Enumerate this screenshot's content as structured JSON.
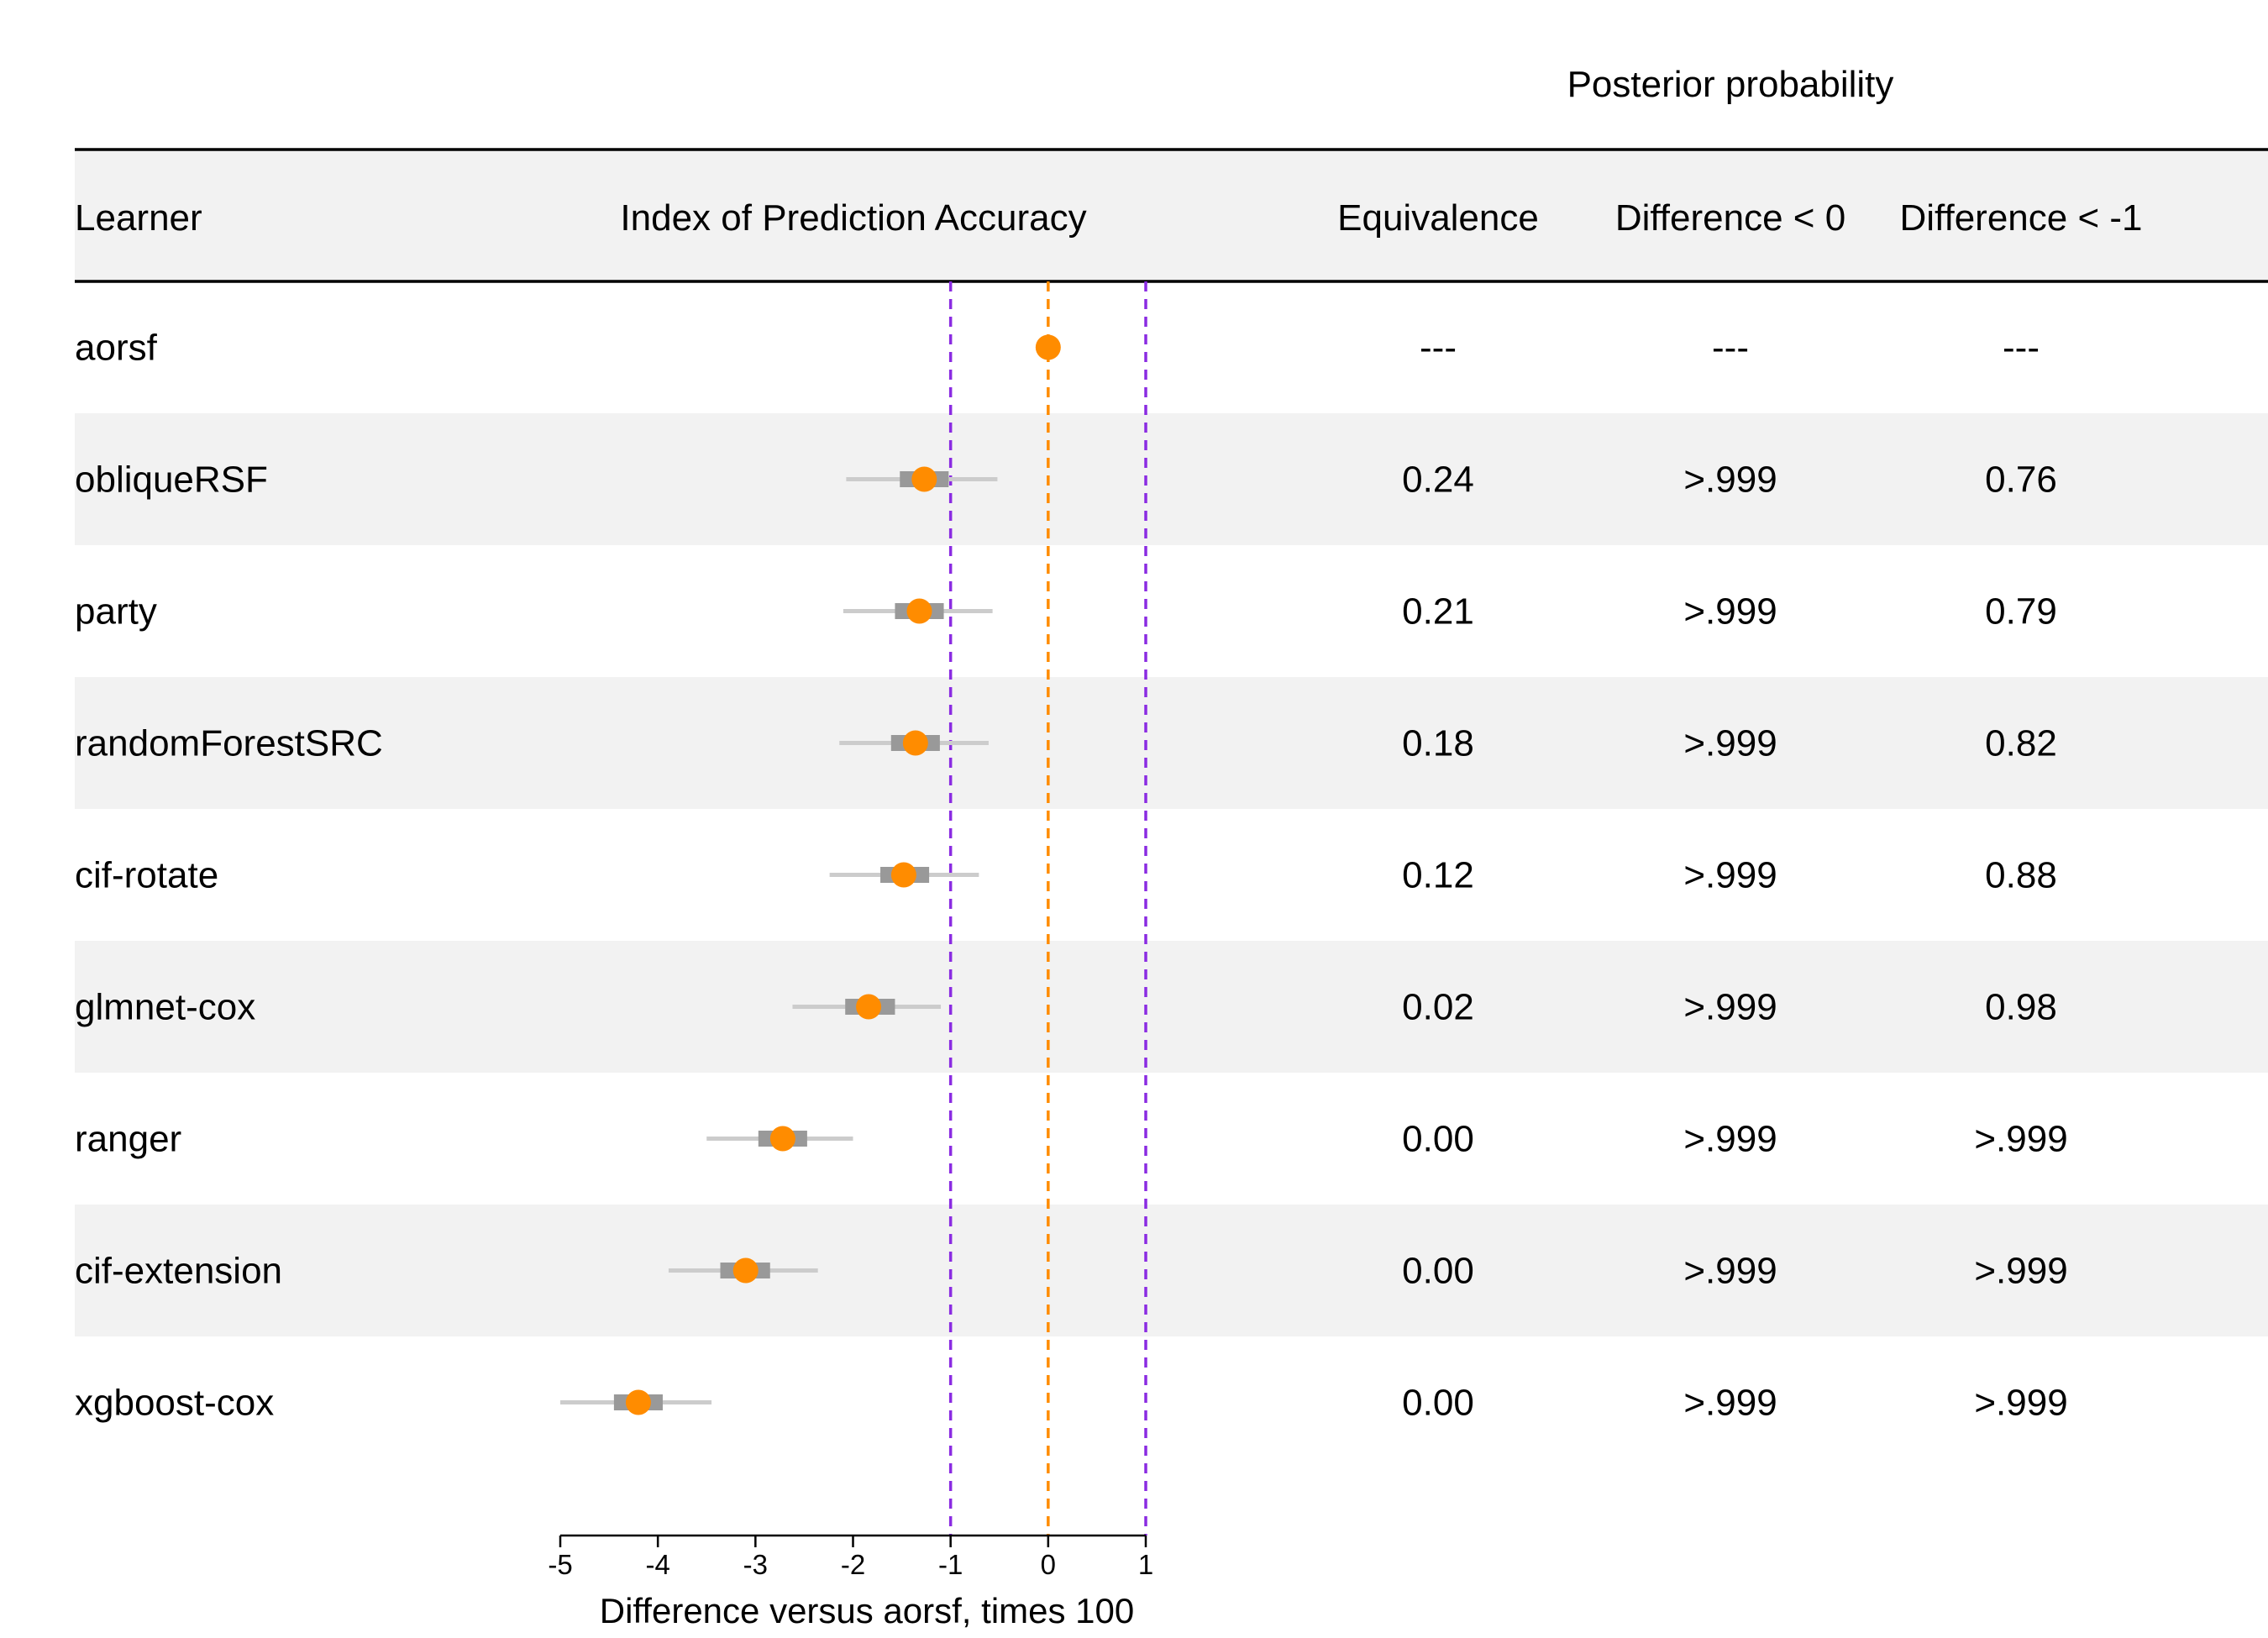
{
  "header": {
    "super_title": "Posterior probability",
    "col_learner": "Learner",
    "col_ipa": "Index of Prediction Accuracy",
    "col_equiv": "Equivalence",
    "col_diff0": "Difference < 0",
    "col_diff1": "Difference < -1"
  },
  "colors": {
    "point": "#FF8C00",
    "ref_line": "#FF8C00",
    "bound_line": "#8A2BE2",
    "interval_outer": "#CCCCCC",
    "interval_inner": "#999999",
    "band": "#F2F2F2",
    "rule": "#000000"
  },
  "chart_data": {
    "type": "forest",
    "xlabel": "Difference versus aorsf, times 100",
    "xlim": [
      -5,
      1
    ],
    "xticks": [
      -5,
      -4,
      -3,
      -2,
      -1,
      0,
      1
    ],
    "xtick_labels": [
      "-5",
      "-4",
      "-3",
      "-2",
      "-1",
      "0",
      "1"
    ],
    "reference_line": 0,
    "equivalence_bounds": [
      -1,
      1
    ],
    "rows": [
      {
        "learner": "aorsf",
        "estimate": 0.0,
        "outer": null,
        "inner": null,
        "equivalence": "---",
        "diff_lt_0": "---",
        "diff_lt_m1": "---"
      },
      {
        "learner": "obliqueRSF",
        "estimate": -1.27,
        "outer": [
          -2.07,
          -0.52
        ],
        "inner": [
          -1.52,
          -1.02
        ],
        "equivalence": "0.24",
        "diff_lt_0": ">.999",
        "diff_lt_m1": "0.76"
      },
      {
        "learner": "party",
        "estimate": -1.32,
        "outer": [
          -2.1,
          -0.57
        ],
        "inner": [
          -1.57,
          -1.07
        ],
        "equivalence": "0.21",
        "diff_lt_0": ">.999",
        "diff_lt_m1": "0.79"
      },
      {
        "learner": "randomForestSRC",
        "estimate": -1.36,
        "outer": [
          -2.14,
          -0.61
        ],
        "inner": [
          -1.61,
          -1.11
        ],
        "equivalence": "0.18",
        "diff_lt_0": ">.999",
        "diff_lt_m1": "0.82"
      },
      {
        "learner": "cif-rotate",
        "estimate": -1.48,
        "outer": [
          -2.24,
          -0.71
        ],
        "inner": [
          -1.72,
          -1.22
        ],
        "equivalence": "0.12",
        "diff_lt_0": ">.999",
        "diff_lt_m1": "0.88"
      },
      {
        "learner": "glmnet-cox",
        "estimate": -1.84,
        "outer": [
          -2.62,
          -1.1
        ],
        "inner": [
          -2.08,
          -1.57
        ],
        "equivalence": "0.02",
        "diff_lt_0": ">.999",
        "diff_lt_m1": "0.98"
      },
      {
        "learner": "ranger",
        "estimate": -2.72,
        "outer": [
          -3.5,
          -2.0
        ],
        "inner": [
          -2.97,
          -2.47
        ],
        "equivalence": "0.00",
        "diff_lt_0": ">.999",
        "diff_lt_m1": ">.999"
      },
      {
        "learner": "cif-extension",
        "estimate": -3.1,
        "outer": [
          -3.89,
          -2.36
        ],
        "inner": [
          -3.36,
          -2.85
        ],
        "equivalence": "0.00",
        "diff_lt_0": ">.999",
        "diff_lt_m1": ">.999"
      },
      {
        "learner": "xgboost-cox",
        "estimate": -4.2,
        "outer": [
          -5.0,
          -3.45
        ],
        "inner": [
          -4.45,
          -3.95
        ],
        "equivalence": "0.00",
        "diff_lt_0": ">.999",
        "diff_lt_m1": ">.999"
      }
    ]
  }
}
